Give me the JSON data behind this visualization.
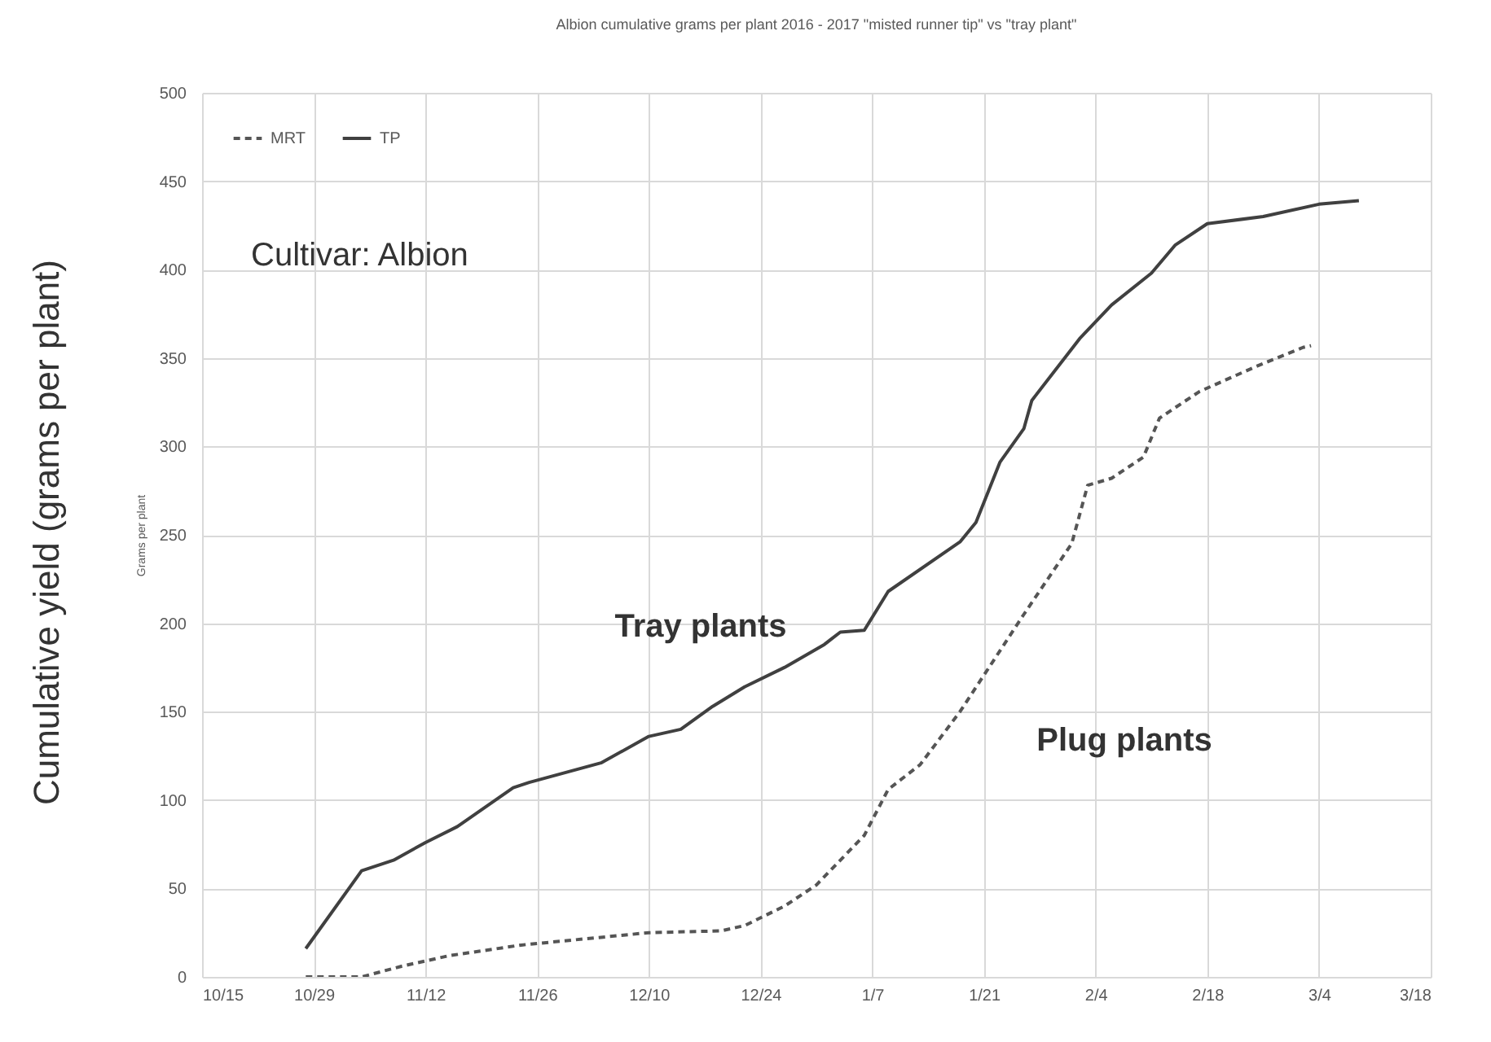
{
  "chart_data": {
    "type": "line",
    "title": "Albion cumulative grams per plant 2016 - 2017 \"misted runner tip\" vs \"tray plant\"",
    "ylabel": "Grams per plant",
    "xlim": [
      "2016-10-15",
      "2017-03-18"
    ],
    "xticks": [
      {
        "value": "2016-10-15",
        "label": "10/15"
      },
      {
        "value": "2016-10-29",
        "label": "10/29"
      },
      {
        "value": "2016-11-12",
        "label": "11/12"
      },
      {
        "value": "2016-11-26",
        "label": "11/26"
      },
      {
        "value": "2016-12-10",
        "label": "12/10"
      },
      {
        "value": "2016-12-24",
        "label": "12/24"
      },
      {
        "value": "2017-01-07",
        "label": "1/7"
      },
      {
        "value": "2017-01-21",
        "label": "1/21"
      },
      {
        "value": "2017-02-04",
        "label": "2/4"
      },
      {
        "value": "2017-02-18",
        "label": "2/18"
      },
      {
        "value": "2017-03-04",
        "label": "3/4"
      },
      {
        "value": "2017-03-18",
        "label": "3/18"
      }
    ],
    "ylim": [
      0,
      500
    ],
    "yticks": [
      0,
      50,
      100,
      150,
      200,
      250,
      300,
      350,
      400,
      450,
      500
    ],
    "grid": true,
    "legend": "top left",
    "series": [
      {
        "name": "MRT",
        "color": "#555555",
        "line_style": "dashed",
        "x": [
          "2016-10-28",
          "2016-11-04",
          "2016-11-09",
          "2016-11-15",
          "2016-11-24",
          "2016-12-10",
          "2016-12-19",
          "2016-12-22",
          "2016-12-27",
          "2016-12-31",
          "2017-01-06",
          "2017-01-09",
          "2017-01-13",
          "2017-01-18",
          "2017-01-26",
          "2017-02-01",
          "2017-02-03",
          "2017-02-06",
          "2017-02-10",
          "2017-02-12",
          "2017-02-17",
          "2017-02-24",
          "2017-03-02",
          "2017-03-03"
        ],
        "values": [
          0,
          0,
          6,
          12,
          18,
          25,
          26,
          29,
          40,
          52,
          80,
          106,
          120,
          150,
          205,
          245,
          278,
          282,
          294,
          316,
          331,
          345,
          356,
          357
        ]
      },
      {
        "name": "TP",
        "color": "#404040",
        "line_style": "solid",
        "x": [
          "2016-10-28",
          "2016-11-04",
          "2016-11-08",
          "2016-11-12",
          "2016-11-16",
          "2016-11-23",
          "2016-11-25",
          "2016-12-04",
          "2016-12-10",
          "2016-12-14",
          "2016-12-18",
          "2016-12-22",
          "2016-12-27",
          "2017-01-01",
          "2017-01-03",
          "2017-01-06",
          "2017-01-09",
          "2017-01-18",
          "2017-01-20",
          "2017-01-23",
          "2017-01-26",
          "2017-01-27",
          "2017-02-02",
          "2017-02-06",
          "2017-02-11",
          "2017-02-14",
          "2017-02-18",
          "2017-02-25",
          "2017-03-04",
          "2017-03-09"
        ],
        "values": [
          16,
          60,
          66,
          76,
          85,
          107,
          110,
          121,
          136,
          140,
          153,
          164,
          175,
          188,
          195,
          196,
          218,
          246,
          257,
          291,
          310,
          326,
          361,
          380,
          398,
          414,
          426,
          430,
          437,
          439
        ]
      }
    ],
    "annotations": [
      "Cultivar: Albion",
      "Tray plants",
      "Plug plants",
      "Cumulative yield (grams per plant)"
    ]
  }
}
